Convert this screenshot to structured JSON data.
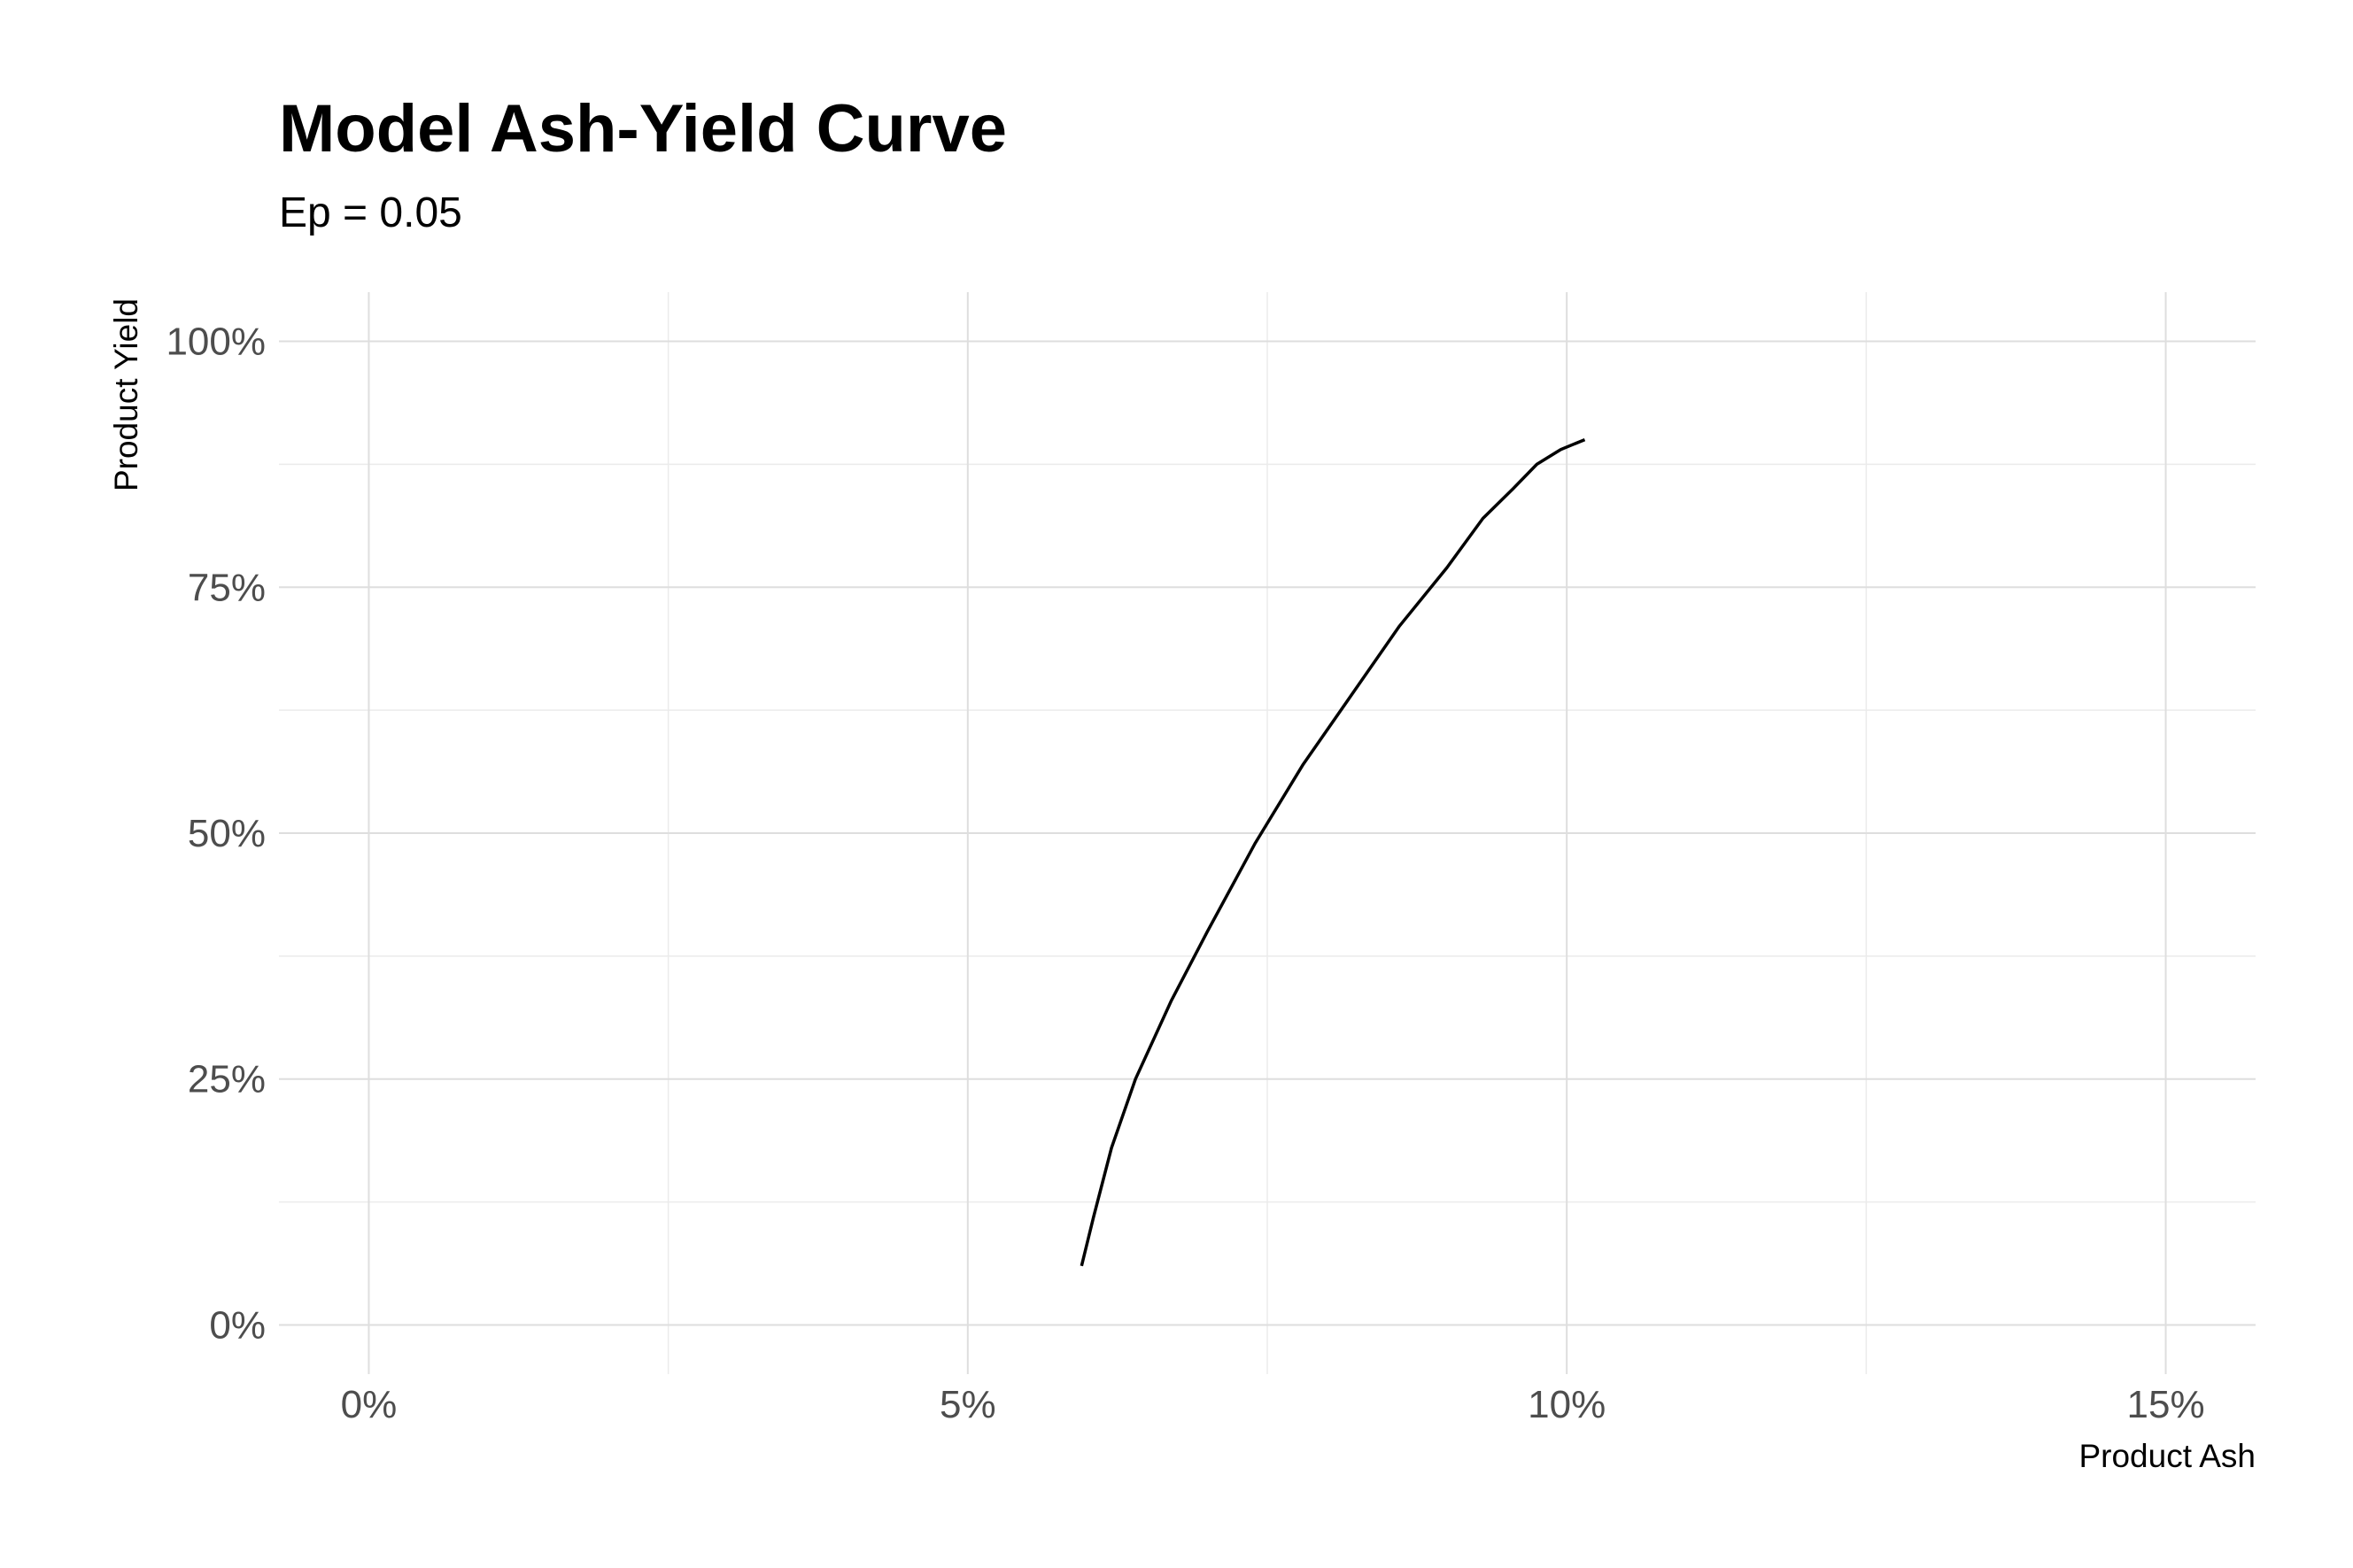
{
  "chart_data": {
    "type": "line",
    "title": "Model Ash-Yield Curve",
    "subtitle": "Ep = 0.05",
    "xlabel": "Product Ash",
    "ylabel": "Product Yield",
    "xlim": [
      -0.75,
      15.75
    ],
    "ylim": [
      -5,
      105
    ],
    "x_ticks": [
      0,
      5,
      10,
      15
    ],
    "x_tick_labels": [
      "0%",
      "5%",
      "10%",
      "15%"
    ],
    "y_ticks": [
      0,
      25,
      50,
      75,
      100
    ],
    "y_tick_labels": [
      "0%",
      "25%",
      "50%",
      "75%",
      "100%"
    ],
    "grid": true,
    "line_color": "#000000",
    "series": [
      {
        "x": [
          5.95,
          6.05,
          6.2,
          6.4,
          6.7,
          7.0,
          7.4,
          7.8,
          8.2,
          8.6,
          9.0,
          9.3,
          9.55,
          9.75,
          9.95,
          10.15
        ],
        "y": [
          6,
          11,
          18,
          25,
          33,
          40,
          49,
          57,
          64,
          71,
          77,
          82,
          85,
          87.5,
          89,
          90
        ]
      }
    ]
  }
}
